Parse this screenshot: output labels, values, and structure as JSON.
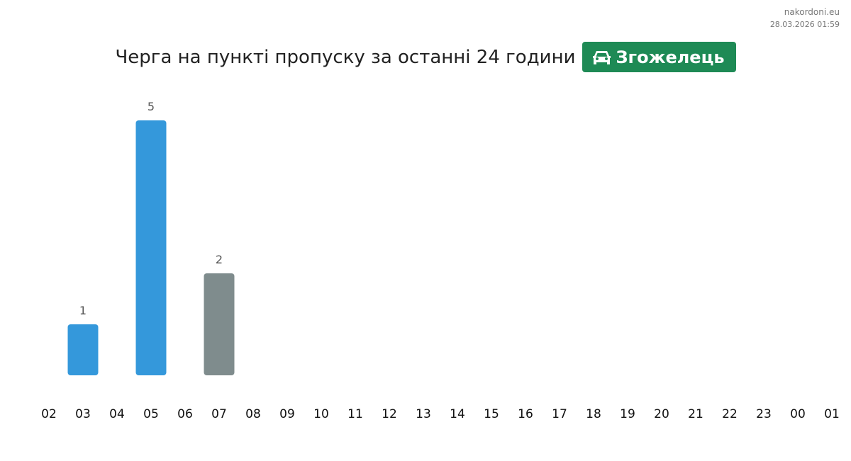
{
  "header": {
    "site": "nakordoni.eu",
    "timestamp": "28.03.2026 01:59"
  },
  "chart_data": {
    "type": "bar",
    "title": "Черга на пункті пропуску за останні 24 години",
    "badge": "Згожелець",
    "categories": [
      "02",
      "03",
      "04",
      "05",
      "06",
      "07",
      "08",
      "09",
      "10",
      "11",
      "12",
      "13",
      "14",
      "15",
      "16",
      "17",
      "18",
      "19",
      "20",
      "21",
      "22",
      "23",
      "00",
      "01"
    ],
    "values": [
      null,
      1,
      null,
      5,
      null,
      2,
      null,
      null,
      null,
      null,
      null,
      null,
      null,
      null,
      null,
      null,
      null,
      null,
      null,
      null,
      null,
      null,
      null,
      null
    ],
    "colors": [
      null,
      "#3498db",
      null,
      "#3498db",
      null,
      "#7f8c8d",
      null,
      null,
      null,
      null,
      null,
      null,
      null,
      null,
      null,
      null,
      null,
      null,
      null,
      null,
      null,
      null,
      null,
      null
    ]
  }
}
